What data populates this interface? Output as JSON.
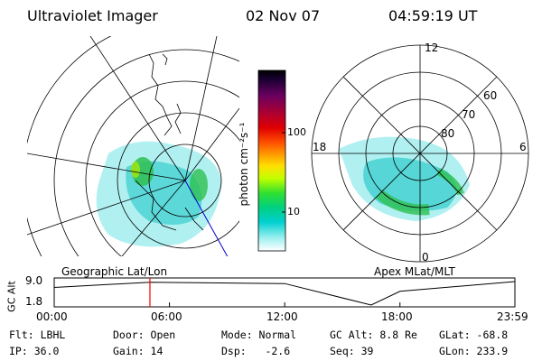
{
  "header": {
    "instrument": "Ultraviolet Imager",
    "date": "02 Nov 07",
    "time": "04:59:19 UT"
  },
  "colorbar": {
    "unit_label": "photon cm⁻²s⁻¹",
    "ticks": [
      {
        "label": "100",
        "value": 100
      },
      {
        "label": "10",
        "value": 10
      }
    ],
    "range": [
      2,
      500
    ],
    "scale": "log",
    "colors": [
      "#000000",
      "#1a0033",
      "#6a0060",
      "#b00030",
      "#e00000",
      "#ff5000",
      "#ffa000",
      "#ffe000",
      "#c0ff00",
      "#30e030",
      "#00d080",
      "#00d0d0",
      "#a0f0f0",
      "#ffffff"
    ]
  },
  "panels": {
    "geographic_label": "Geographic Lat/Lon",
    "apex_label": "Apex MLat/MLT"
  },
  "apex": {
    "mlt_labels": {
      "top": "12",
      "bottom": "0",
      "left": "18",
      "right": "6"
    },
    "lat_labels": [
      "60",
      "70",
      "80"
    ]
  },
  "altitude_plot": {
    "ylabel": "GC Alt",
    "yticks": [
      "9.0",
      "1.8"
    ],
    "xticks": [
      "00:00",
      "06:00",
      "12:00",
      "18:00",
      "23:59"
    ],
    "marker_time": "04:59",
    "marker_color": "#ff0000",
    "chart_data": {
      "type": "line",
      "x": [
        "00:00",
        "04:59",
        "12:00",
        "16:30",
        "18:00",
        "23:59"
      ],
      "values": [
        7.2,
        8.8,
        8.4,
        1.8,
        6.0,
        9.0
      ],
      "ylim": [
        1.8,
        9.0
      ]
    }
  },
  "status": {
    "row1": {
      "flt": "Flt: LBHL",
      "door": "Door: Open",
      "mode": "Mode: Normal",
      "gc_alt": "GC Alt: 8.8 Re",
      "glat": "GLat: -68.8"
    },
    "row2": {
      "ip": "IP: 36.0",
      "gain": "Gain: 14",
      "dsp": "Dsp:   -2.6",
      "seq": "Seq: 39",
      "glon": "GLon: 233.9"
    }
  }
}
